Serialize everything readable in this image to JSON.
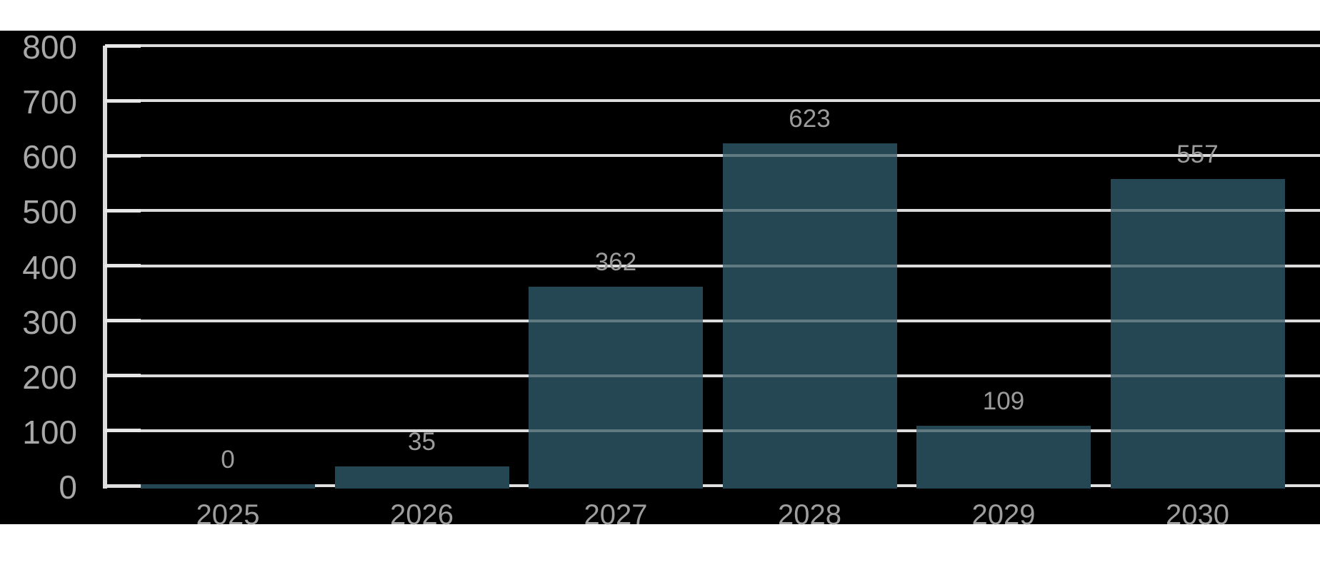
{
  "chart_data": {
    "type": "bar",
    "title": "",
    "categories": [
      "2025",
      "2026",
      "2027",
      "2028",
      "2029",
      "2030"
    ],
    "values": [
      0,
      35,
      362,
      623,
      109,
      557
    ],
    "value_labels": [
      "0",
      "35",
      "362",
      "623",
      "109",
      "557"
    ],
    "xlabel": "",
    "ylabel": "",
    "ylim": [
      0,
      800
    ],
    "ytick_interval": 100,
    "ytick_labels": [
      "800",
      "700",
      "600",
      "500",
      "400",
      "300",
      "200",
      "100",
      "0"
    ],
    "grid": "horizontal-only",
    "legend": "none",
    "colors": {
      "page_background": "#ffffff",
      "plot_background": "#000000",
      "bar": "#254753",
      "gridline": "#cfcfcf",
      "gridline_over_bar": "rgba(255,255,255,0.28)",
      "axis_line": "#dcdcdc",
      "baseline": "#e0e0e0",
      "tick_mark": "#e0e0e0",
      "y_tick_label": "#a8a8a8",
      "x_tick_label": "#9e9e9e",
      "value_label": "#9c9c9c"
    }
  }
}
